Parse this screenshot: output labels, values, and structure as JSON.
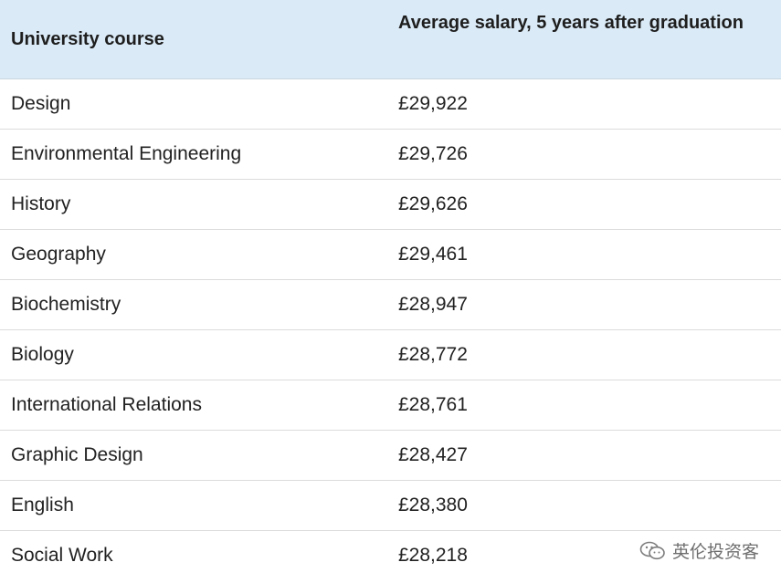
{
  "table": {
    "headers": {
      "course": "University course",
      "salary": "Average salary, 5 years after graduation"
    },
    "rows": [
      {
        "course": "Design",
        "salary": "£29,922"
      },
      {
        "course": "Environmental Engineering",
        "salary": "£29,726"
      },
      {
        "course": "History",
        "salary": "£29,626"
      },
      {
        "course": "Geography",
        "salary": "£29,461"
      },
      {
        "course": "Biochemistry",
        "salary": "£28,947"
      },
      {
        "course": "Biology",
        "salary": "£28,772"
      },
      {
        "course": "International Relations",
        "salary": "£28,761"
      },
      {
        "course": "Graphic Design",
        "salary": "£28,427"
      },
      {
        "course": "English",
        "salary": "£28,380"
      },
      {
        "course": "Social Work",
        "salary": "£28,218"
      }
    ]
  },
  "colors": {
    "header_bg": "#daeaf6",
    "row_border": "#dcdcdc"
  },
  "watermark": {
    "icon": "wechat-icon",
    "text": "英伦投资客"
  }
}
